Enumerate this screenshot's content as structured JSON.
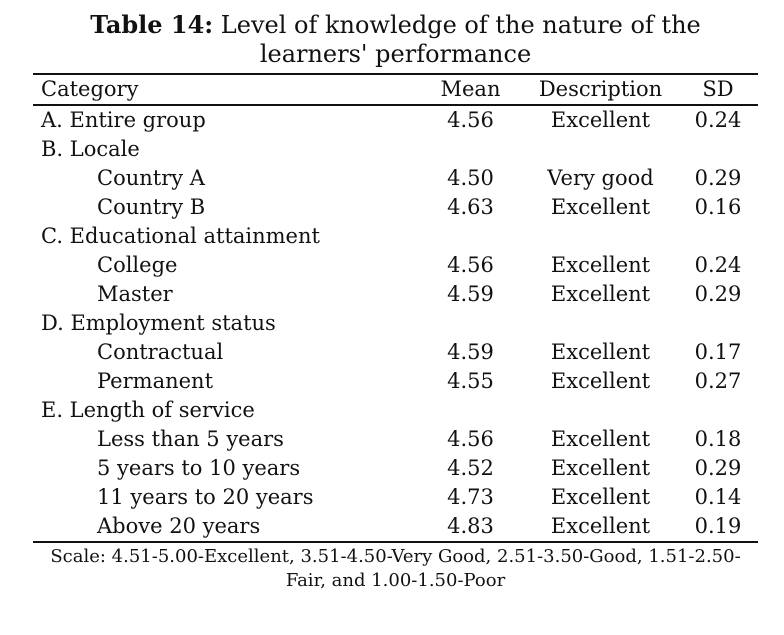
{
  "table": {
    "title_label": "Table 14:",
    "title_text": "Level of knowledge of the nature of the learners' performance",
    "headers": [
      "Category",
      "Mean",
      "Description",
      "SD"
    ],
    "rows": [
      {
        "category": "A. Entire group",
        "mean": "4.56",
        "description": "Excellent",
        "sd": "0.24",
        "sub": false
      },
      {
        "category": "B. Locale",
        "mean": "",
        "description": "",
        "sd": "",
        "sub": false
      },
      {
        "category": "Country A",
        "mean": "4.50",
        "description": "Very good",
        "sd": "0.29",
        "sub": true
      },
      {
        "category": "Country B",
        "mean": "4.63",
        "description": "Excellent",
        "sd": "0.16",
        "sub": true
      },
      {
        "category": "C. Educational attainment",
        "mean": "",
        "description": "",
        "sd": "",
        "sub": false
      },
      {
        "category": "College",
        "mean": "4.56",
        "description": "Excellent",
        "sd": "0.24",
        "sub": true
      },
      {
        "category": "Master",
        "mean": "4.59",
        "description": "Excellent",
        "sd": "0.29",
        "sub": true
      },
      {
        "category": "D. Employment status",
        "mean": "",
        "description": "",
        "sd": "",
        "sub": false
      },
      {
        "category": "Contractual",
        "mean": "4.59",
        "description": "Excellent",
        "sd": "0.17",
        "sub": true
      },
      {
        "category": "Permanent",
        "mean": "4.55",
        "description": "Excellent",
        "sd": "0.27",
        "sub": true
      },
      {
        "category": "E. Length of service",
        "mean": "",
        "description": "",
        "sd": "",
        "sub": false
      },
      {
        "category": "Less than 5 years",
        "mean": "4.56",
        "description": "Excellent",
        "sd": "0.18",
        "sub": true
      },
      {
        "category": "5 years to 10 years",
        "mean": "4.52",
        "description": "Excellent",
        "sd": "0.29",
        "sub": true
      },
      {
        "category": "11 years to 20 years",
        "mean": "4.73",
        "description": "Excellent",
        "sd": "0.14",
        "sub": true
      },
      {
        "category": "Above 20 years",
        "mean": "4.83",
        "description": "Excellent",
        "sd": "0.19",
        "sub": true
      }
    ],
    "note": "Scale: 4.51-5.00-Excellent, 3.51-4.50-Very Good, 2.51-3.50-Good, 1.51-2.50-Fair, and 1.00-1.50-Poor"
  }
}
